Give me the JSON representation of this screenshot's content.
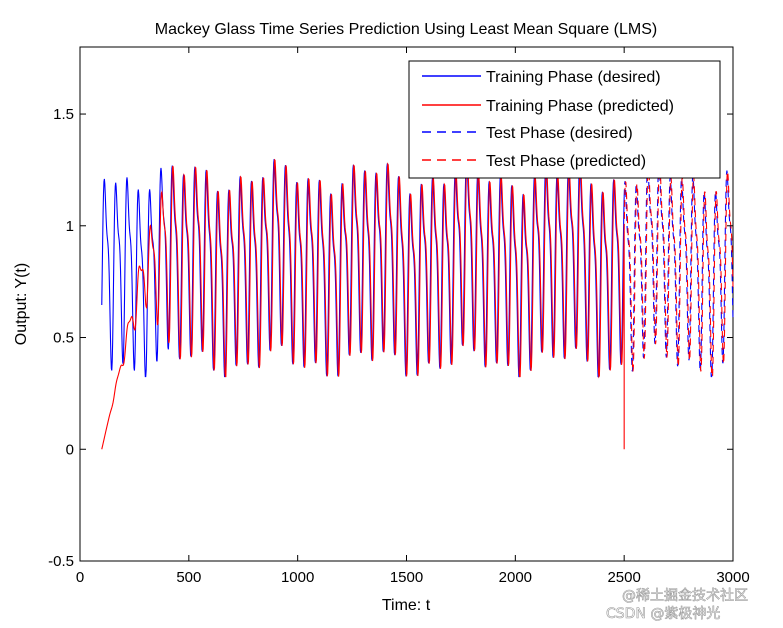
{
  "chart_data": {
    "type": "line",
    "title": "Mackey Glass Time Series Prediction Using Least Mean Square (LMS)",
    "xlabel": "Time: t",
    "ylabel": "Output: Y(t)",
    "xlim": [
      0,
      3000
    ],
    "ylim": [
      -0.5,
      1.8
    ],
    "xticks": [
      0,
      500,
      1000,
      1500,
      2000,
      2500,
      3000
    ],
    "xtick_labels": [
      "0",
      "500",
      "1000",
      "1500",
      "2000",
      "2500",
      "3000"
    ],
    "yticks": [
      -0.5,
      0,
      0.5,
      1,
      1.5
    ],
    "ytick_labels": [
      "-0.5",
      "0",
      "0.5",
      "1",
      "1.5"
    ],
    "grid": false,
    "legend_position": "top-right",
    "series": [
      {
        "name": "Training Phase (desired)",
        "color": "#0000ff",
        "style": "solid",
        "x_range": [
          100,
          2500
        ],
        "role": "desired"
      },
      {
        "name": "Training Phase (predicted)",
        "color": "#ff0000",
        "style": "solid",
        "x_range": [
          100,
          2500
        ],
        "role": "predicted"
      },
      {
        "name": "Test Phase (desired)",
        "color": "#0000ff",
        "style": "dashed",
        "x_range": [
          2500,
          3000
        ],
        "role": "desired"
      },
      {
        "name": "Test Phase (predicted)",
        "color": "#ff0000",
        "style": "dashed",
        "x_range": [
          2500,
          3000
        ],
        "role": "predicted"
      }
    ],
    "signal": {
      "period": 52,
      "min": 0.35,
      "max": 1.35,
      "predicted_start": 0.0,
      "predicted_converge_t": 420,
      "spike_t": 2500,
      "spike_value": 0.0
    },
    "watermark": "@稀土掘金技术社区\nCSDN @紫极神光"
  }
}
